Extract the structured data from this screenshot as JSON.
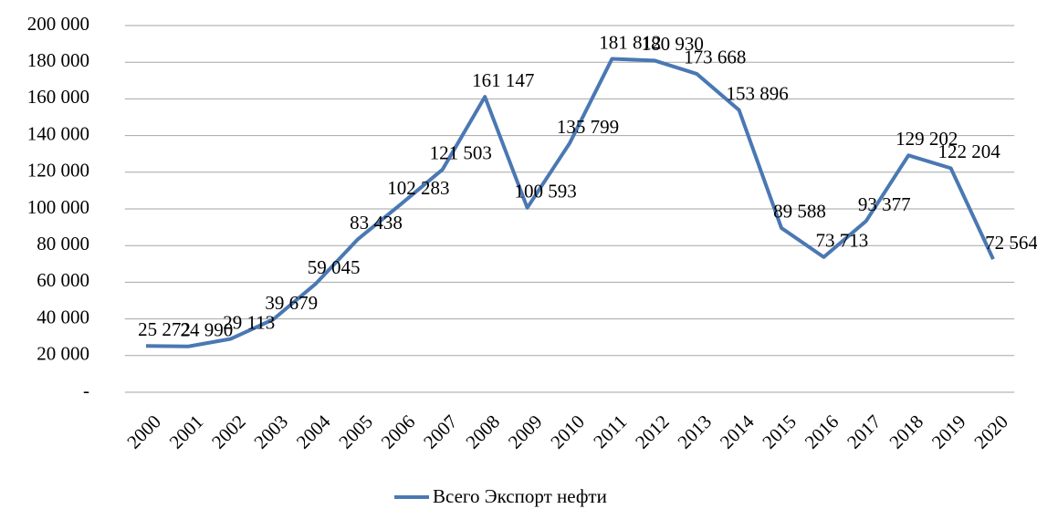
{
  "chart_data": {
    "type": "line",
    "categories": [
      "2000",
      "2001",
      "2002",
      "2003",
      "2004",
      "2005",
      "2006",
      "2007",
      "2008",
      "2009",
      "2010",
      "2011",
      "2012",
      "2013",
      "2014",
      "2015",
      "2016",
      "2017",
      "2018",
      "2019",
      "2020"
    ],
    "series": [
      {
        "name": "Всего Экспорт нефти",
        "color": "#4a78b3",
        "values": [
          25272,
          24990,
          29113,
          39679,
          59045,
          83438,
          102283,
          121503,
          161147,
          100593,
          135799,
          181812,
          180930,
          173668,
          153896,
          89588,
          73713,
          93377,
          129202,
          122204,
          72564
        ],
        "value_labels": [
          "25 272",
          "24 990",
          "29 113",
          "39 679",
          "59 045",
          "83 438",
          "102 283",
          "121 503",
          "161 147",
          "100 593",
          "135 799",
          "181 812",
          "180 930",
          "173 668",
          "153 896",
          "89 588",
          "73 713",
          "93 377",
          "129 202",
          "122 204",
          "72 564"
        ]
      }
    ],
    "ylim": [
      0,
      200000
    ],
    "yticks": [
      {
        "value": 0,
        "label": "-"
      },
      {
        "value": 20000,
        "label": "20 000"
      },
      {
        "value": 40000,
        "label": "40 000"
      },
      {
        "value": 60000,
        "label": "60 000"
      },
      {
        "value": 80000,
        "label": "80 000"
      },
      {
        "value": 100000,
        "label": "100 000"
      },
      {
        "value": 120000,
        "label": "120 000"
      },
      {
        "value": 140000,
        "label": "140 000"
      },
      {
        "value": 160000,
        "label": "160 000"
      },
      {
        "value": 180000,
        "label": "180 000"
      },
      {
        "value": 200000,
        "label": "200 000"
      }
    ],
    "grid": true,
    "legend": "bottom"
  }
}
